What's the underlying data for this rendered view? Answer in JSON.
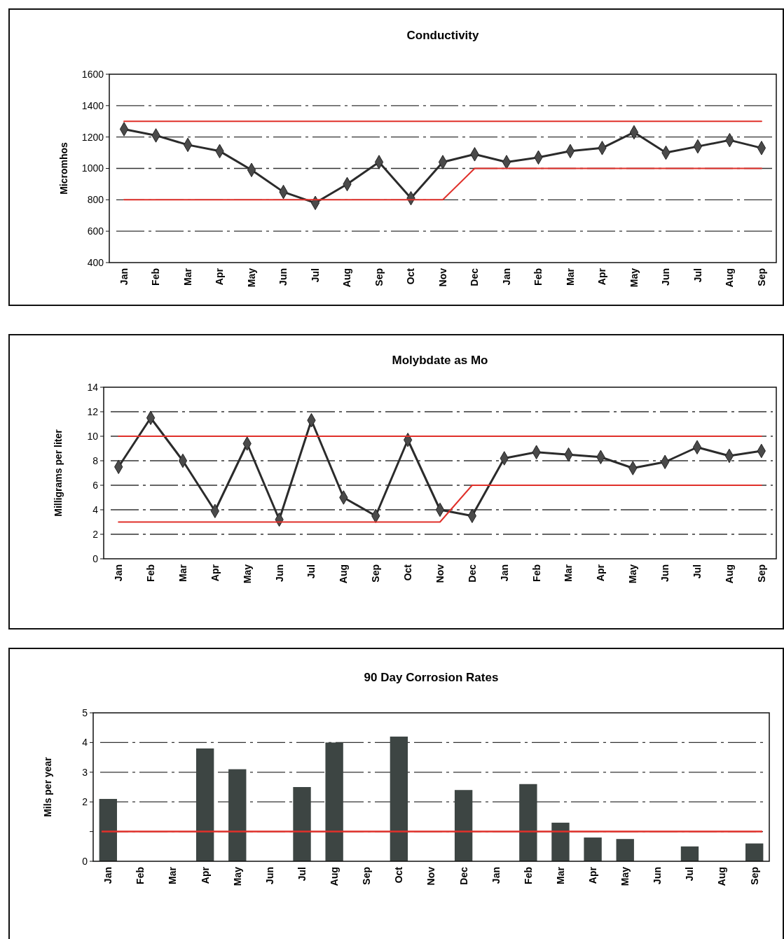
{
  "chart_data": [
    {
      "type": "line",
      "title": "Conductivity",
      "ylabel": "Micromhos",
      "categories": [
        "Jan",
        "Feb",
        "Mar",
        "Apr",
        "May",
        "Jun",
        "Jul",
        "Aug",
        "Sep",
        "Oct",
        "Nov",
        "Dec",
        "Jan",
        "Feb",
        "Mar",
        "Apr",
        "May",
        "Jun",
        "Jul",
        "Aug",
        "Sep"
      ],
      "ylim": [
        400,
        1600
      ],
      "yticks": [
        400,
        600,
        800,
        1000,
        1200,
        1400,
        1600
      ],
      "grid": "y",
      "marker": "diamond",
      "series": [
        {
          "color": "#2b2b2b",
          "values": [
            1250,
            1210,
            1150,
            1110,
            990,
            850,
            780,
            900,
            1040,
            810,
            1040,
            1090,
            1040,
            1070,
            1110,
            1130,
            1230,
            1100,
            1140,
            1180,
            1130
          ]
        },
        {
          "color": "#e0302a",
          "marker": "none",
          "values": [
            1300,
            1300,
            1300,
            1300,
            1300,
            1300,
            1300,
            1300,
            1300,
            1300,
            1300,
            1300,
            1300,
            1300,
            1300,
            1300,
            1300,
            1300,
            1300,
            1300,
            1300
          ]
        },
        {
          "color": "#e0302a",
          "marker": "none",
          "values": [
            800,
            800,
            800,
            800,
            800,
            800,
            800,
            800,
            800,
            800,
            800,
            1000,
            1000,
            1000,
            1000,
            1000,
            1000,
            1000,
            1000,
            1000,
            1000
          ]
        }
      ]
    },
    {
      "type": "line",
      "title": "Molybdate as Mo",
      "ylabel": "Milligrams per liter",
      "categories": [
        "Jan",
        "Feb",
        "Mar",
        "Apr",
        "May",
        "Jun",
        "Jul",
        "Aug",
        "Sep",
        "Oct",
        "Nov",
        "Dec",
        "Jan",
        "Feb",
        "Mar",
        "Apr",
        "May",
        "Jun",
        "Jul",
        "Aug",
        "Sep"
      ],
      "ylim": [
        0,
        14
      ],
      "yticks": [
        0,
        2,
        4,
        6,
        8,
        10,
        12,
        14
      ],
      "grid": "y",
      "marker": "diamond",
      "series": [
        {
          "color": "#2b2b2b",
          "values": [
            7.5,
            11.5,
            8,
            3.9,
            9.4,
            3.2,
            11.3,
            5,
            3.5,
            9.7,
            4,
            3.5,
            8.2,
            8.7,
            8.5,
            8.3,
            7.4,
            7.9,
            9.1,
            8.4,
            8.8
          ]
        },
        {
          "color": "#e0302a",
          "marker": "none",
          "values": [
            10,
            10,
            10,
            10,
            10,
            10,
            10,
            10,
            10,
            10,
            10,
            10,
            10,
            10,
            10,
            10,
            10,
            10,
            10,
            10,
            10
          ]
        },
        {
          "color": "#e0302a",
          "marker": "none",
          "values": [
            3,
            3,
            3,
            3,
            3,
            3,
            3,
            3,
            3,
            3,
            3,
            6,
            6,
            6,
            6,
            6,
            6,
            6,
            6,
            6,
            6
          ]
        }
      ]
    },
    {
      "type": "bar",
      "title": "90 Day Corrosion Rates",
      "ylabel": "Mils per year",
      "categories": [
        "Jan",
        "Feb",
        "Mar",
        "Apr",
        "May",
        "Jun",
        "Jul",
        "Aug",
        "Sep",
        "Oct",
        "Nov",
        "Dec",
        "Jan",
        "Feb",
        "Mar",
        "Apr",
        "May",
        "Jun",
        "Jul",
        "Aug",
        "Sep"
      ],
      "ylim": [
        0,
        5
      ],
      "yticks": [
        0,
        {
          "value": 1,
          "label": null
        },
        2,
        3,
        4,
        5
      ],
      "grid": "y",
      "ref_lines": [
        {
          "axis": "y",
          "value": 1,
          "color": "#e0302a"
        }
      ],
      "series": [
        {
          "color": "#3d4543",
          "values": [
            2.1,
            null,
            null,
            3.8,
            3.1,
            null,
            2.5,
            4.0,
            null,
            4.2,
            null,
            2.4,
            null,
            2.6,
            1.3,
            0.8,
            0.75,
            null,
            0.5,
            null,
            0.6
          ]
        }
      ]
    }
  ]
}
